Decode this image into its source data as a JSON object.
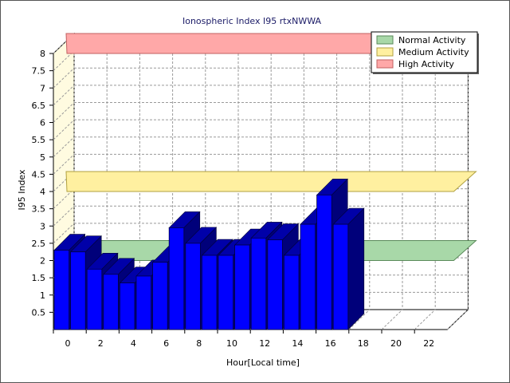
{
  "chart_data": {
    "type": "bar",
    "title": "Ionospheric Index I95 rtxNWWA",
    "xlabel": "Hour[Local time]",
    "ylabel": "I95 Index",
    "x": [
      0,
      1,
      2,
      3,
      4,
      5,
      6,
      7,
      8,
      9,
      10,
      11,
      12,
      13,
      14,
      15,
      16,
      17
    ],
    "values": [
      2.3,
      2.25,
      1.75,
      1.6,
      1.35,
      1.55,
      1.95,
      2.95,
      2.5,
      2.15,
      2.15,
      2.45,
      2.65,
      2.6,
      2.15,
      3.05,
      3.9,
      3.05
    ],
    "xlim": [
      0,
      24
    ],
    "ylim": [
      0,
      8
    ],
    "xticks": [
      0,
      2,
      4,
      6,
      8,
      10,
      12,
      14,
      16,
      18,
      20,
      22
    ],
    "yticks": [
      0.5,
      1,
      1.5,
      2,
      2.5,
      3,
      3.5,
      4,
      4.5,
      5,
      5.5,
      6,
      6.5,
      7,
      7.5,
      8
    ],
    "bar_color": "#0000ff",
    "grid": true,
    "legend_position": "top-right",
    "activity_bands": [
      {
        "name": "Normal Activity",
        "level": 2,
        "fill": "#a8d8a8",
        "stroke": "#5a8a5a"
      },
      {
        "name": "Medium Activity",
        "level": 4,
        "fill": "#fff0a0",
        "stroke": "#b0a040"
      },
      {
        "name": "High Activity",
        "level": 8,
        "fill": "#ffa8a8",
        "stroke": "#c06060"
      }
    ]
  }
}
